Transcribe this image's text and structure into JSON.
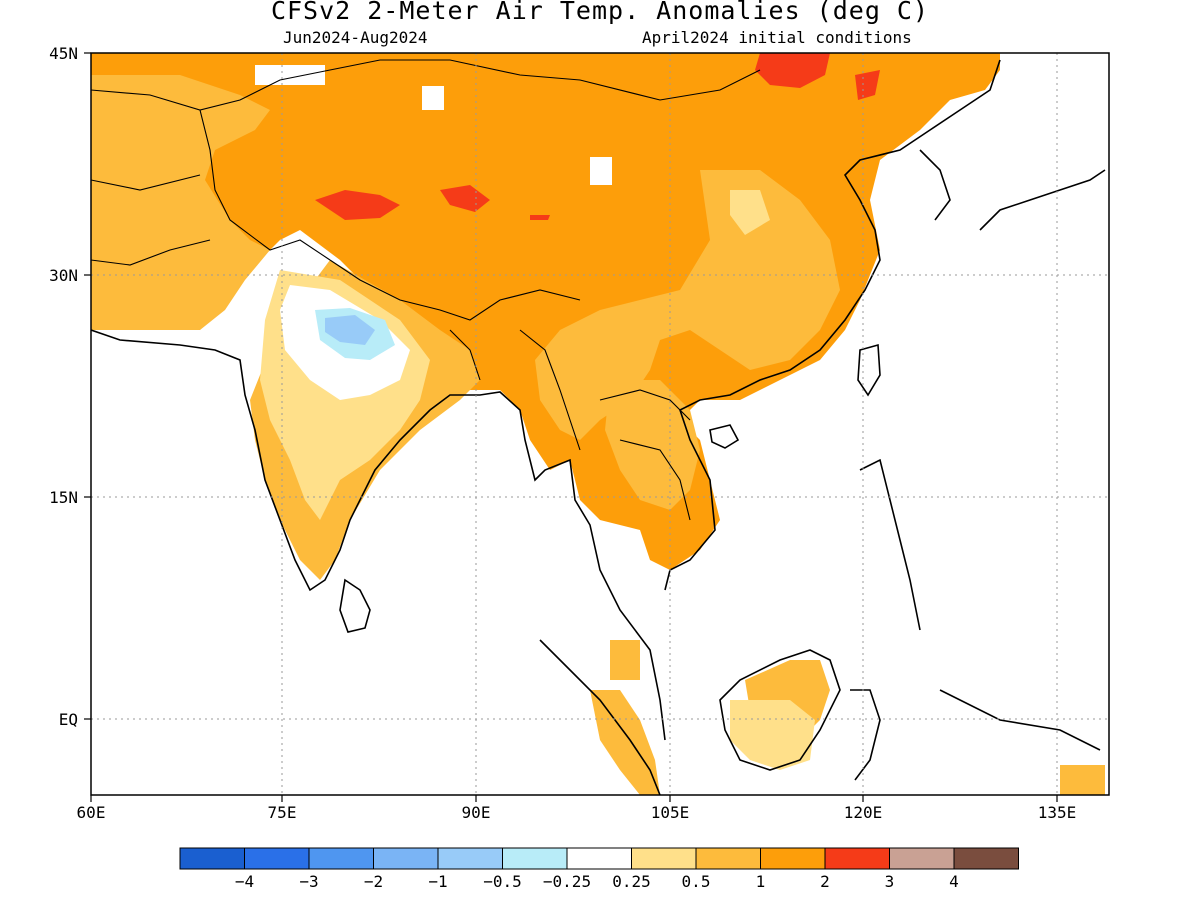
{
  "title": "CFSv2 2-Meter Air Temp. Anomalies (deg C)",
  "subtitle_left": "Jun2024-Aug2024",
  "subtitle_right": "April2024 initial conditions",
  "map": {
    "lon_range": [
      60,
      140
    ],
    "lat_range": [
      -6,
      45
    ],
    "lat_labels": [
      "45N",
      "30N",
      "15N",
      "EQ"
    ],
    "lon_labels": [
      "60E",
      "75E",
      "90E",
      "105E",
      "120E",
      "135E"
    ],
    "grid": "dotted"
  },
  "colorbar": {
    "colors": [
      "#1a5fd0",
      "#2a70e8",
      "#4f96f0",
      "#7ab4f5",
      "#98cbf8",
      "#b8ecf8",
      "#ffffff",
      "#ffe08a",
      "#fdbb3c",
      "#fd9e0a",
      "#f53b18",
      "#c9a194",
      "#7a4d3e"
    ],
    "labels": [
      "-4",
      "-3",
      "-2",
      "-1",
      "-0.5",
      "-0.25",
      "0.25",
      "0.5",
      "1",
      "2",
      "3",
      "4"
    ]
  },
  "legend_labels": [
    "−4",
    "−3",
    "−2",
    "−1",
    "−0.5",
    "−0.25",
    "0.25",
    "0.5",
    "1",
    "2",
    "3",
    "4"
  ]
}
